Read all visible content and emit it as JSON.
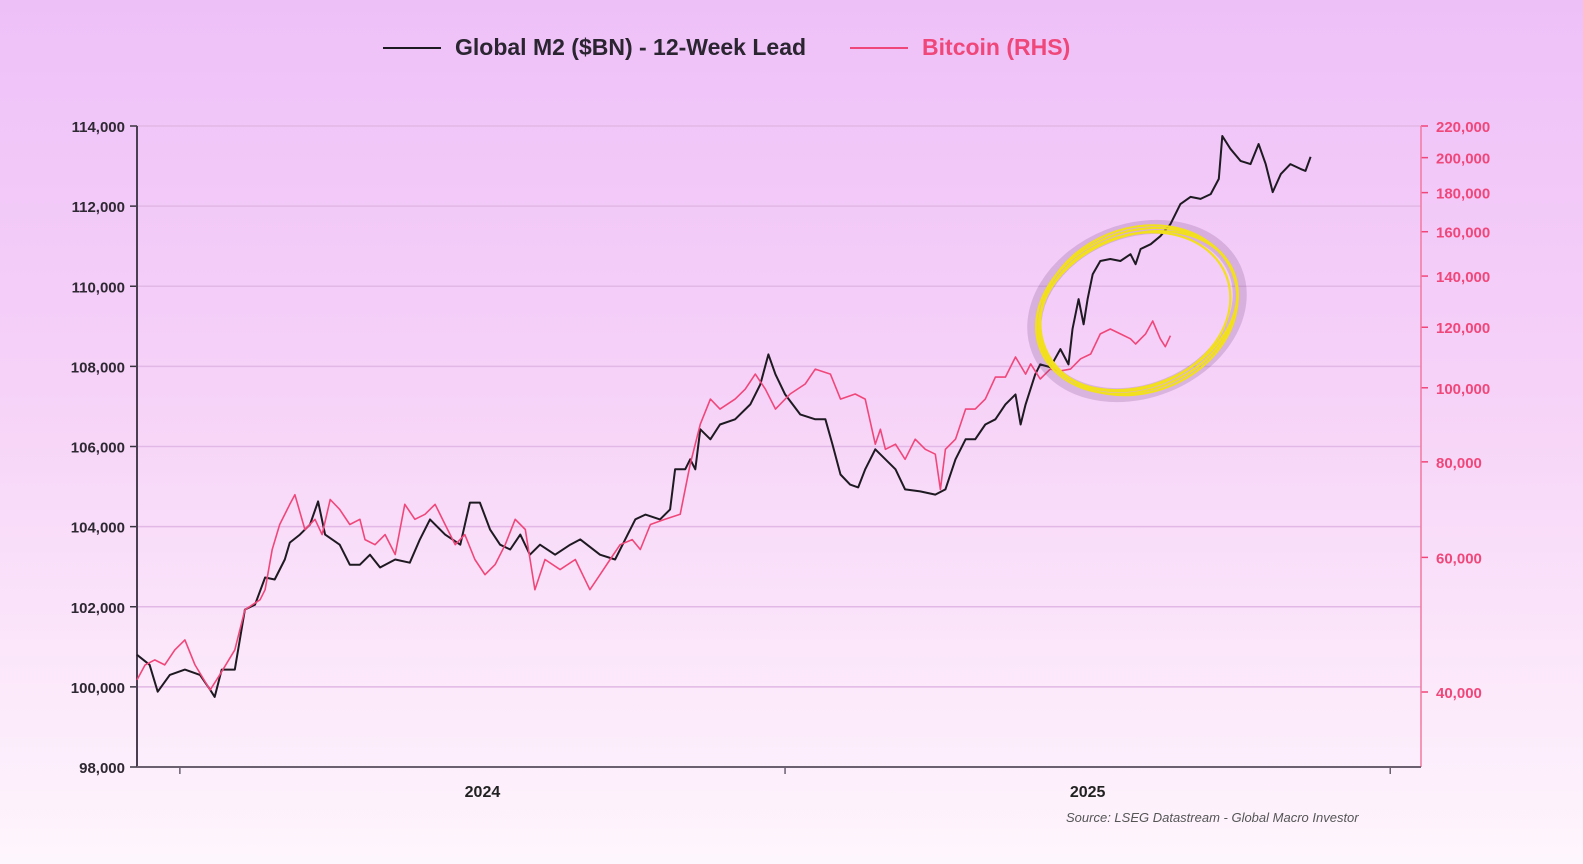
{
  "chart_data": {
    "type": "line",
    "title": "",
    "legend_placement": "top-center",
    "x_unit": "months since Jan 2024",
    "xlim": [
      -0.85,
      24.61
    ],
    "x_ticks": [
      0,
      12,
      24
    ],
    "x_tick_labels": [
      {
        "label": "2024",
        "at": 6
      },
      {
        "label": "2025",
        "at": 18
      }
    ],
    "left_axis": {
      "ylim": [
        98000,
        114000
      ],
      "ticks": [
        98000,
        100000,
        102000,
        104000,
        106000,
        108000,
        110000,
        112000,
        114000
      ],
      "tick_labels": [
        "98,000",
        "100,000",
        "102,000",
        "104,000",
        "106,000",
        "108,000",
        "110,000",
        "112,000",
        "114,000"
      ],
      "scale": "linear"
    },
    "right_axis": {
      "ylim": [
        40000,
        220000
      ],
      "scale": "log",
      "ticks": [
        40000,
        60000,
        80000,
        100000,
        120000,
        140000,
        160000,
        180000,
        200000,
        220000
      ],
      "tick_labels": [
        "40,000",
        "60,000",
        "80,000",
        "100,000",
        "120,000",
        "140,000",
        "160,000",
        "180,000",
        "200,000",
        "220,000"
      ]
    },
    "grid": true,
    "series": [
      {
        "name": "Global M2 ($BN) - 12-Week Lead",
        "axis": "left",
        "color": "#1e1a22",
        "x": [
          -0.85,
          -0.6,
          -0.44,
          -0.2,
          0.1,
          0.4,
          0.6,
          0.69,
          0.83,
          1.09,
          1.29,
          1.49,
          1.69,
          1.88,
          2.08,
          2.18,
          2.38,
          2.58,
          2.74,
          2.88,
          3.17,
          3.37,
          3.57,
          3.77,
          3.97,
          4.27,
          4.56,
          4.76,
          4.96,
          5.26,
          5.56,
          5.75,
          5.95,
          6.15,
          6.35,
          6.55,
          6.75,
          6.94,
          7.14,
          7.44,
          7.74,
          7.94,
          8.33,
          8.63,
          8.83,
          9.03,
          9.23,
          9.52,
          9.72,
          9.82,
          10.02,
          10.12,
          10.22,
          10.32,
          10.52,
          10.71,
          11.01,
          11.31,
          11.51,
          11.67,
          11.81,
          12.0,
          12.3,
          12.6,
          12.8,
          12.94,
          13.1,
          13.29,
          13.45,
          13.59,
          13.79,
          13.99,
          14.19,
          14.38,
          14.68,
          14.98,
          15.18,
          15.38,
          15.58,
          15.77,
          15.97,
          16.17,
          16.37,
          16.57,
          16.67,
          16.77,
          16.96,
          17.06,
          17.26,
          17.46,
          17.62,
          17.7,
          17.82,
          17.92,
          18.0,
          18.1,
          18.25,
          18.45,
          18.65,
          18.85,
          18.95,
          19.05,
          19.25,
          19.44,
          19.64,
          19.84,
          20.04,
          20.24,
          20.44,
          20.6,
          20.67,
          20.83,
          21.03,
          21.23,
          21.39,
          21.53,
          21.67,
          21.83,
          22.02,
          22.22,
          22.32,
          22.42
        ],
        "values": [
          100800,
          100550,
          99880,
          100300,
          100430,
          100300,
          99930,
          99750,
          100430,
          100430,
          101930,
          102050,
          102730,
          102680,
          103180,
          103600,
          103800,
          104050,
          104630,
          103800,
          103550,
          103050,
          103050,
          103300,
          102980,
          103180,
          103100,
          103680,
          104180,
          103800,
          103550,
          104600,
          104600,
          103930,
          103550,
          103430,
          103800,
          103300,
          103550,
          103300,
          103550,
          103680,
          103300,
          103180,
          103680,
          104180,
          104300,
          104180,
          104430,
          105430,
          105430,
          105680,
          105430,
          106430,
          106180,
          106550,
          106680,
          107050,
          107550,
          108300,
          107800,
          107300,
          106800,
          106680,
          106680,
          106050,
          105300,
          105050,
          104980,
          105430,
          105930,
          105680,
          105430,
          104930,
          104880,
          104800,
          104930,
          105680,
          106180,
          106180,
          106550,
          106680,
          107050,
          107300,
          106550,
          107050,
          107800,
          108050,
          107980,
          108430,
          108050,
          108930,
          109680,
          109050,
          109680,
          110300,
          110630,
          110680,
          110630,
          110800,
          110550,
          110930,
          111050,
          111250,
          111550,
          112050,
          112230,
          112180,
          112300,
          112680,
          113750,
          113430,
          113130,
          113050,
          113550,
          113050,
          112350,
          112800,
          113050,
          112930,
          112880,
          113230
        ]
      },
      {
        "name": "Bitcoin (RHS)",
        "axis": "right",
        "color": "#f0477a",
        "x": [
          -0.85,
          -0.69,
          -0.5,
          -0.3,
          -0.1,
          0.1,
          0.3,
          0.6,
          0.79,
          1.09,
          1.29,
          1.59,
          1.69,
          1.83,
          1.98,
          2.18,
          2.28,
          2.48,
          2.68,
          2.82,
          2.98,
          3.17,
          3.37,
          3.57,
          3.67,
          3.87,
          4.07,
          4.27,
          4.46,
          4.66,
          4.86,
          5.06,
          5.26,
          5.46,
          5.65,
          5.85,
          6.05,
          6.25,
          6.45,
          6.65,
          6.85,
          7.04,
          7.24,
          7.54,
          7.84,
          8.13,
          8.33,
          8.53,
          8.73,
          8.97,
          9.13,
          9.33,
          9.62,
          9.92,
          10.12,
          10.32,
          10.52,
          10.71,
          11.01,
          11.21,
          11.41,
          11.61,
          11.81,
          12.1,
          12.4,
          12.6,
          12.9,
          13.1,
          13.39,
          13.59,
          13.79,
          13.89,
          13.99,
          14.19,
          14.38,
          14.58,
          14.78,
          14.98,
          15.08,
          15.18,
          15.38,
          15.58,
          15.77,
          15.97,
          16.17,
          16.37,
          16.57,
          16.77,
          16.87,
          17.06,
          17.26,
          17.46,
          17.66,
          17.86,
          18.06,
          18.25,
          18.45,
          18.65,
          18.85,
          18.95,
          19.15,
          19.29,
          19.44,
          19.54,
          19.64
        ],
        "values": [
          41480,
          43400,
          44060,
          43400,
          45410,
          46800,
          43400,
          40240,
          42110,
          45410,
          51240,
          52820,
          54440,
          61440,
          66250,
          70410,
          72470,
          65260,
          67290,
          64270,
          71430,
          69330,
          66250,
          67290,
          63310,
          62340,
          64270,
          60530,
          70410,
          67290,
          68310,
          70410,
          66250,
          62340,
          64270,
          59610,
          56950,
          58710,
          62340,
          67290,
          65260,
          54440,
          59610,
          57830,
          59610,
          54440,
          56950,
          59610,
          62340,
          63310,
          61440,
          66250,
          67290,
          68310,
          79440,
          89600,
          96650,
          93770,
          96650,
          99570,
          104200,
          99570,
          93770,
          98130,
          101150,
          105800,
          104200,
          96650,
          98130,
          96650,
          84370,
          88280,
          83090,
          84370,
          80630,
          85660,
          83090,
          81860,
          73600,
          83090,
          85660,
          93770,
          93770,
          96650,
          103270,
          103270,
          109720,
          104200,
          107450,
          102680,
          105800,
          105200,
          105800,
          109130,
          110710,
          117610,
          119380,
          117610,
          115880,
          114090,
          117610,
          122290,
          115880,
          113170,
          117000
        ]
      }
    ],
    "annotations": [
      {
        "type": "hand-drawn-circle",
        "color": "#f2df1e",
        "around": "divergence 2025"
      }
    ],
    "source": "Source: LSEG Datastream - Global Macro Investor"
  }
}
